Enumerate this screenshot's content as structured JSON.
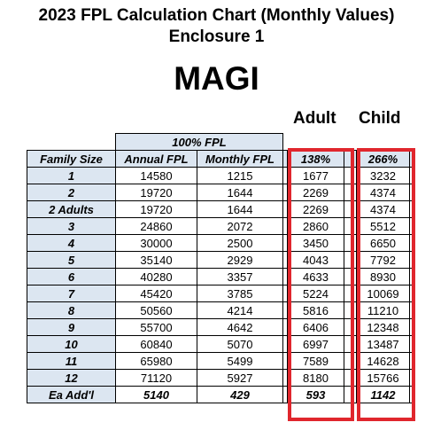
{
  "title_line1": "2023 FPL Calculation Chart (Monthly Values)",
  "title_line2": "Enclosure 1",
  "section_label": "MAGI",
  "column_headers": {
    "adult": "Adult",
    "child": "Child"
  },
  "table": {
    "group_header": "100% FPL",
    "header": [
      "Family Size",
      "Annual FPL",
      "Monthly FPL",
      "138%",
      "266%"
    ],
    "rows": [
      [
        "1",
        "14580",
        "1215",
        "1677",
        "3232"
      ],
      [
        "2",
        "19720",
        "1644",
        "2269",
        "4374"
      ],
      [
        "2 Adults",
        "19720",
        "1644",
        "2269",
        "4374"
      ],
      [
        "3",
        "24860",
        "2072",
        "2860",
        "5512"
      ],
      [
        "4",
        "30000",
        "2500",
        "3450",
        "6650"
      ],
      [
        "5",
        "35140",
        "2929",
        "4043",
        "7792"
      ],
      [
        "6",
        "40280",
        "3357",
        "4633",
        "8930"
      ],
      [
        "7",
        "45420",
        "3785",
        "5224",
        "10069"
      ],
      [
        "8",
        "50560",
        "4214",
        "5816",
        "11210"
      ],
      [
        "9",
        "55700",
        "4642",
        "6406",
        "12348"
      ],
      [
        "10",
        "60840",
        "5070",
        "6997",
        "13487"
      ],
      [
        "11",
        "65980",
        "5499",
        "7589",
        "14628"
      ],
      [
        "12",
        "71120",
        "5927",
        "8180",
        "15766"
      ]
    ],
    "footer": [
      "Ea Add'l",
      "5140",
      "429",
      "593",
      "1142"
    ]
  },
  "highlight_color": "#e0262d"
}
